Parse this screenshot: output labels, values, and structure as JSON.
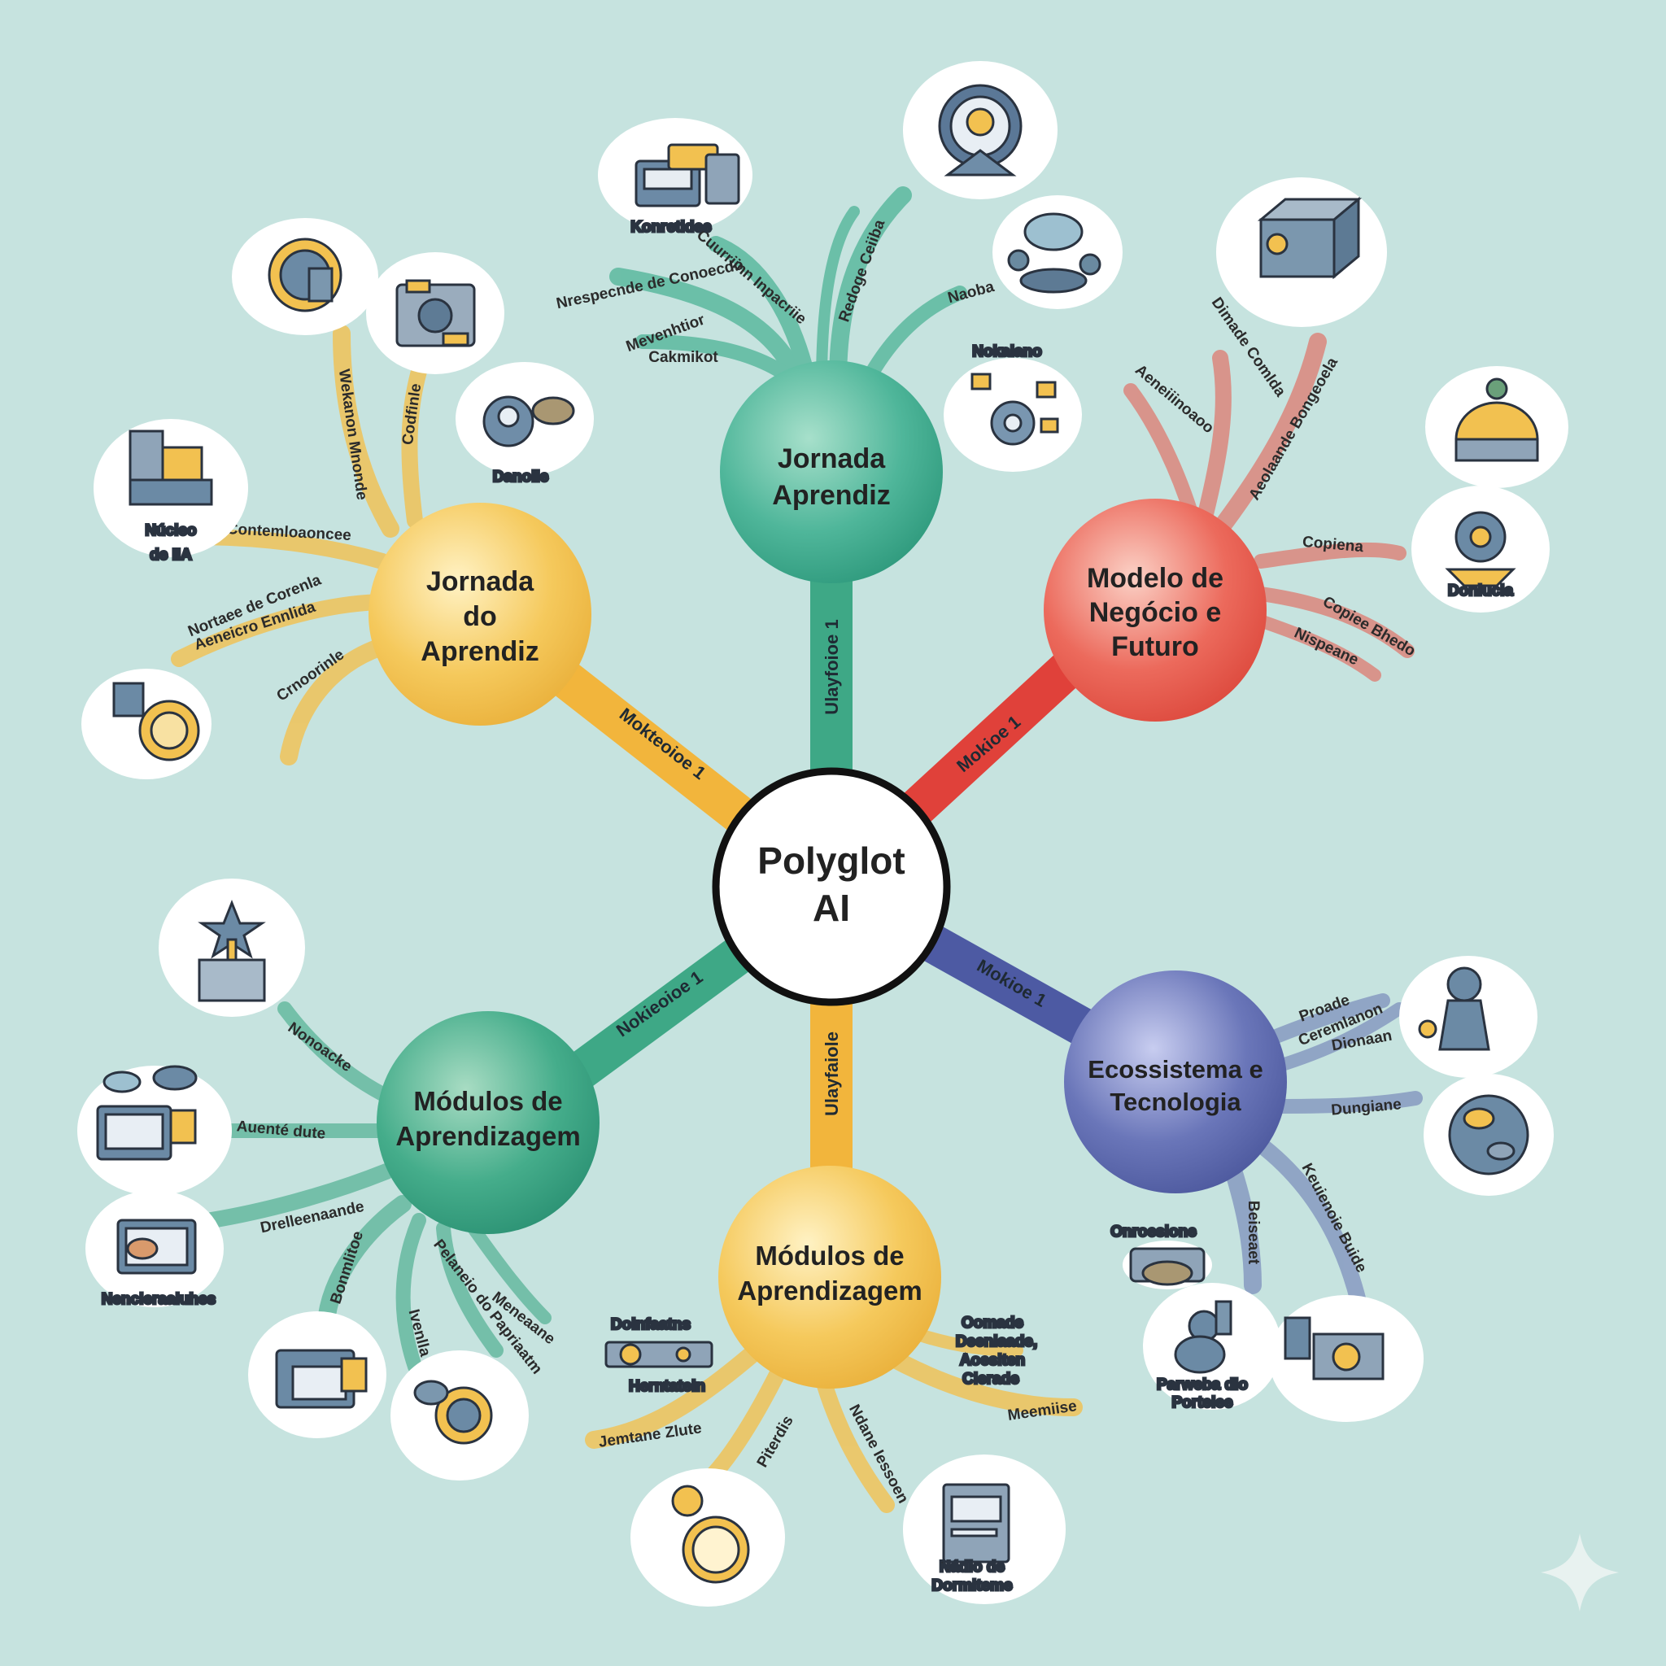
{
  "center": {
    "label_1": "Polyglot",
    "label_2": "AI"
  },
  "connectors": {
    "top": "Ulayfoioe 1",
    "left_top": "Mokteoioe 1",
    "right_top": "Mokioe 1",
    "left_bottom": "Nokieoioe 1",
    "right_bottom": "Mokioe 1",
    "bottom": "Ulayfaiole"
  },
  "nodes": {
    "top": {
      "lines": [
        "Jornada",
        "Aprendiz"
      ],
      "branch_labels": [
        "Nrespecnde de Conoecdo",
        "Cuurriinn Inpacriie",
        "Mevenhtior",
        "Cakmikot",
        "Redoge Ceiiba",
        "Naoba"
      ],
      "icon_labels": [
        "Konretidee",
        "Nokaiano"
      ]
    },
    "left_top": {
      "lines": [
        "Jornada",
        "do",
        "Aprendiz"
      ],
      "branch_labels": [
        "Wekanon Mnonde",
        "Codfinle",
        "Contemloaoncee",
        "Nortaee de Corenla",
        "Aeneicro Ennlida",
        "Crnoorinle"
      ],
      "icon_labels": [
        "Núcleo",
        "de IIA",
        "Danoiie"
      ]
    },
    "right_top": {
      "lines": [
        "Modelo de",
        "Negócio e",
        "Futuro"
      ],
      "branch_labels": [
        "Dimade Comlda",
        "Aeneiiinoaoo",
        "Aeolaande Bongeoela",
        "Copiena",
        "Copiee Bhedo",
        "Nispeane"
      ],
      "icon_labels": [
        "Donlucia"
      ]
    },
    "left_bottom": {
      "lines": [
        "Módulos de",
        "Aprendizagem"
      ],
      "branch_labels": [
        "Nonoacke",
        "Auenté dute",
        "Drelleenaande",
        "Bonmlitoe",
        "Ivenlla",
        "Pelaneio do Papriaatm",
        "Meneaane"
      ],
      "icon_labels": [
        "Nencieraaiuhes"
      ]
    },
    "bottom": {
      "lines": [
        "Módulos de",
        "Aprendizagem"
      ],
      "branch_labels": [
        "Jemtane Zlute",
        "Piterdis",
        "Ndane Iessoen",
        "Meemiise"
      ],
      "icon_labels": [
        "Doinfaatns",
        "Herntatein",
        "Oomade",
        "Deenlaade,",
        "Aoesiten",
        "Clerade",
        "Nádio de",
        "Dormiteme"
      ]
    },
    "right_bottom": {
      "lines": [
        "Ecossistema e",
        "Tecnologia"
      ],
      "branch_labels": [
        "Proade",
        "Ceremlanon",
        "Dionaan",
        "Dungiane",
        "Beiseaet",
        "Keuienoie Buide"
      ],
      "icon_labels": [
        "Onroesione",
        "Parweba dio",
        "Porteiee"
      ]
    }
  },
  "colors": {
    "teal": "#4db396",
    "yellow": "#f2c150",
    "red": "#e85447",
    "blue": "#5b68ad",
    "green": "#3ea886",
    "background": "#c6e3df"
  },
  "icons": [
    "console-icon",
    "astronaut-icon",
    "cloud-island-icon",
    "gear-network-icon",
    "sun-gear-icon",
    "machine-hands-icon",
    "robot-people-icon",
    "books-computer-icon",
    "watch-icon",
    "server-block-icon",
    "gold-dome-icon",
    "robot-temple-icon",
    "trophy-star-icon",
    "laptop-clouds-icon",
    "hand-monitor-icon",
    "computer-stack-icon",
    "globe-gear-icon",
    "piece-animal-icon",
    "world-map-icon",
    "dino-icon",
    "city-machine-icon",
    "pipeline-icon",
    "compass-icon",
    "document-screen-icon",
    "sparkle-icon"
  ]
}
